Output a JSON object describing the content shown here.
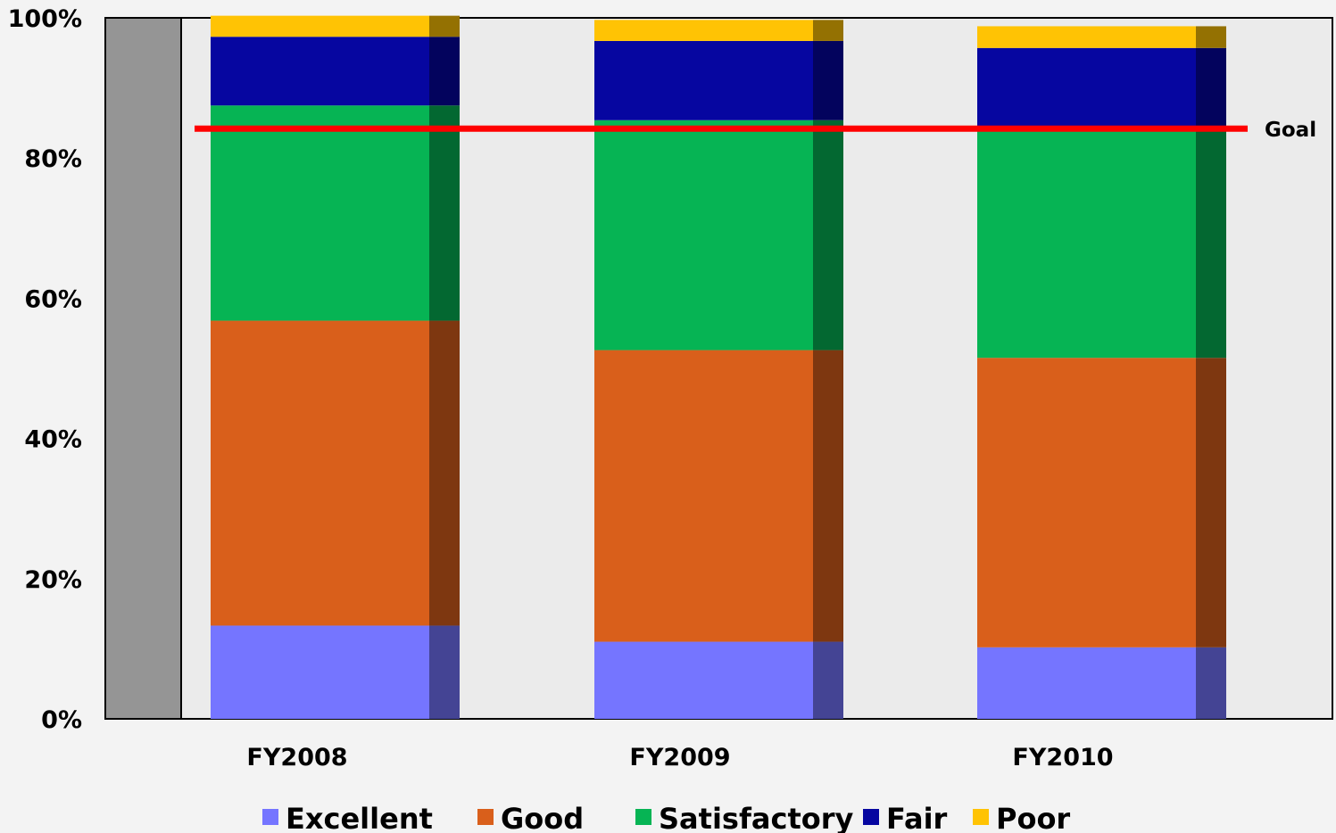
{
  "chart_data": {
    "type": "bar",
    "stacked": true,
    "categories": [
      "FY2008",
      "FY2009",
      "FY2010"
    ],
    "series": [
      {
        "name": "Excellent",
        "color": "#7575ff",
        "values": [
          13.3,
          11.0,
          10.2
        ]
      },
      {
        "name": "Good",
        "color": "#d95f1b",
        "values": [
          43.5,
          41.6,
          41.3
        ]
      },
      {
        "name": "Satisfactory",
        "color": "#06b454",
        "values": [
          30.7,
          32.8,
          32.9
        ]
      },
      {
        "name": "Fair",
        "color": "#0606a0",
        "values": [
          9.8,
          11.3,
          11.3
        ]
      },
      {
        "name": "Poor",
        "color": "#ffc304",
        "values": [
          3.0,
          3.0,
          3.1
        ]
      }
    ],
    "goal": {
      "label": "Goal",
      "value": 84.2,
      "color": "#ff0000"
    },
    "ylim": [
      0,
      100
    ],
    "yticks": [
      "0%",
      "20%",
      "40%",
      "60%",
      "80%",
      "100%"
    ],
    "legend_position": "bottom",
    "title": "",
    "xlabel": "",
    "ylabel": ""
  }
}
